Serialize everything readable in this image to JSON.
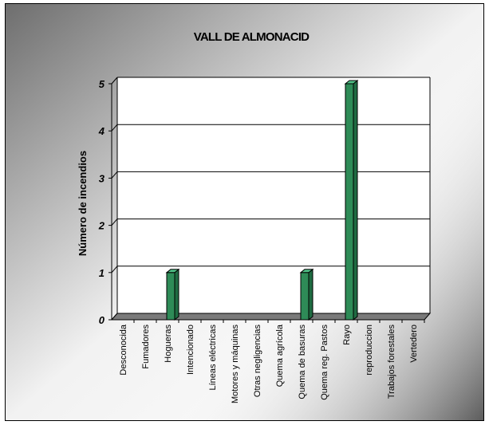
{
  "chart_data": {
    "type": "bar",
    "title": "VALL DE ALMONACID",
    "ylabel": "Número de incendios",
    "xlabel": "",
    "ylim": [
      0,
      5
    ],
    "yticks": [
      "0",
      "1",
      "2",
      "3",
      "4",
      "5"
    ],
    "grid": true,
    "legend": "none",
    "bar_color": "#2e8b57",
    "categories": [
      "Desconocida",
      "Fumadores",
      "Hogueras",
      "Intencionado",
      "Líneas eléctricas",
      "Motores y máquinas",
      "Otras negligencias",
      "Quema agrícola",
      "Quema de basuras",
      "Quema reg. Pastos",
      "Rayo",
      "reproduccion",
      "Trabajos forestales",
      "Vertedero"
    ],
    "values": [
      0,
      0,
      1,
      0,
      0,
      0,
      0,
      0,
      1,
      0,
      5,
      0,
      0,
      0
    ]
  }
}
